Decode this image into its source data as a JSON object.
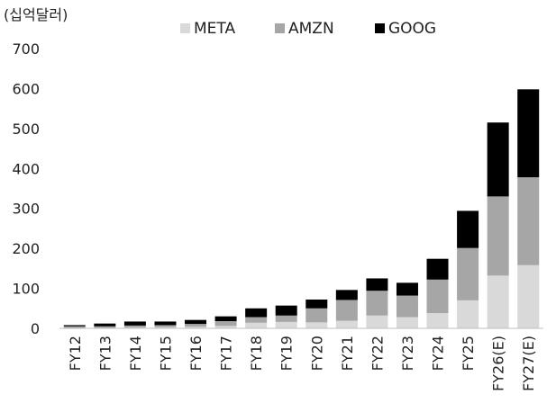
{
  "chart_data": {
    "type": "bar",
    "stacked": true,
    "unit_label": "(십억달러)",
    "categories": [
      "FY12",
      "FY13",
      "FY14",
      "FY15",
      "FY16",
      "FY17",
      "FY18",
      "FY19",
      "FY20",
      "FY21",
      "FY22",
      "FY23",
      "FY24",
      "FY25",
      "FY26(E)",
      "FY27(E)"
    ],
    "series": [
      {
        "name": "META",
        "color": "#d9d9d9",
        "values": [
          1,
          1,
          2,
          3,
          4,
          6,
          14,
          16,
          15,
          19,
          32,
          28,
          38,
          70,
          132,
          158
        ]
      },
      {
        "name": "AMZN",
        "color": "#a6a6a6",
        "values": [
          4,
          4,
          5,
          5,
          7,
          12,
          14,
          16,
          35,
          52,
          62,
          54,
          84,
          131,
          198,
          220
        ]
      },
      {
        "name": "GOOG",
        "color": "#000000",
        "values": [
          3,
          7,
          10,
          9,
          10,
          12,
          22,
          25,
          22,
          25,
          31,
          32,
          52,
          93,
          185,
          220
        ]
      }
    ],
    "ylim": [
      0,
      700
    ],
    "yticks": [
      0,
      100,
      200,
      300,
      400,
      500,
      600,
      700
    ],
    "grid": false,
    "legend_position": "top-center"
  }
}
